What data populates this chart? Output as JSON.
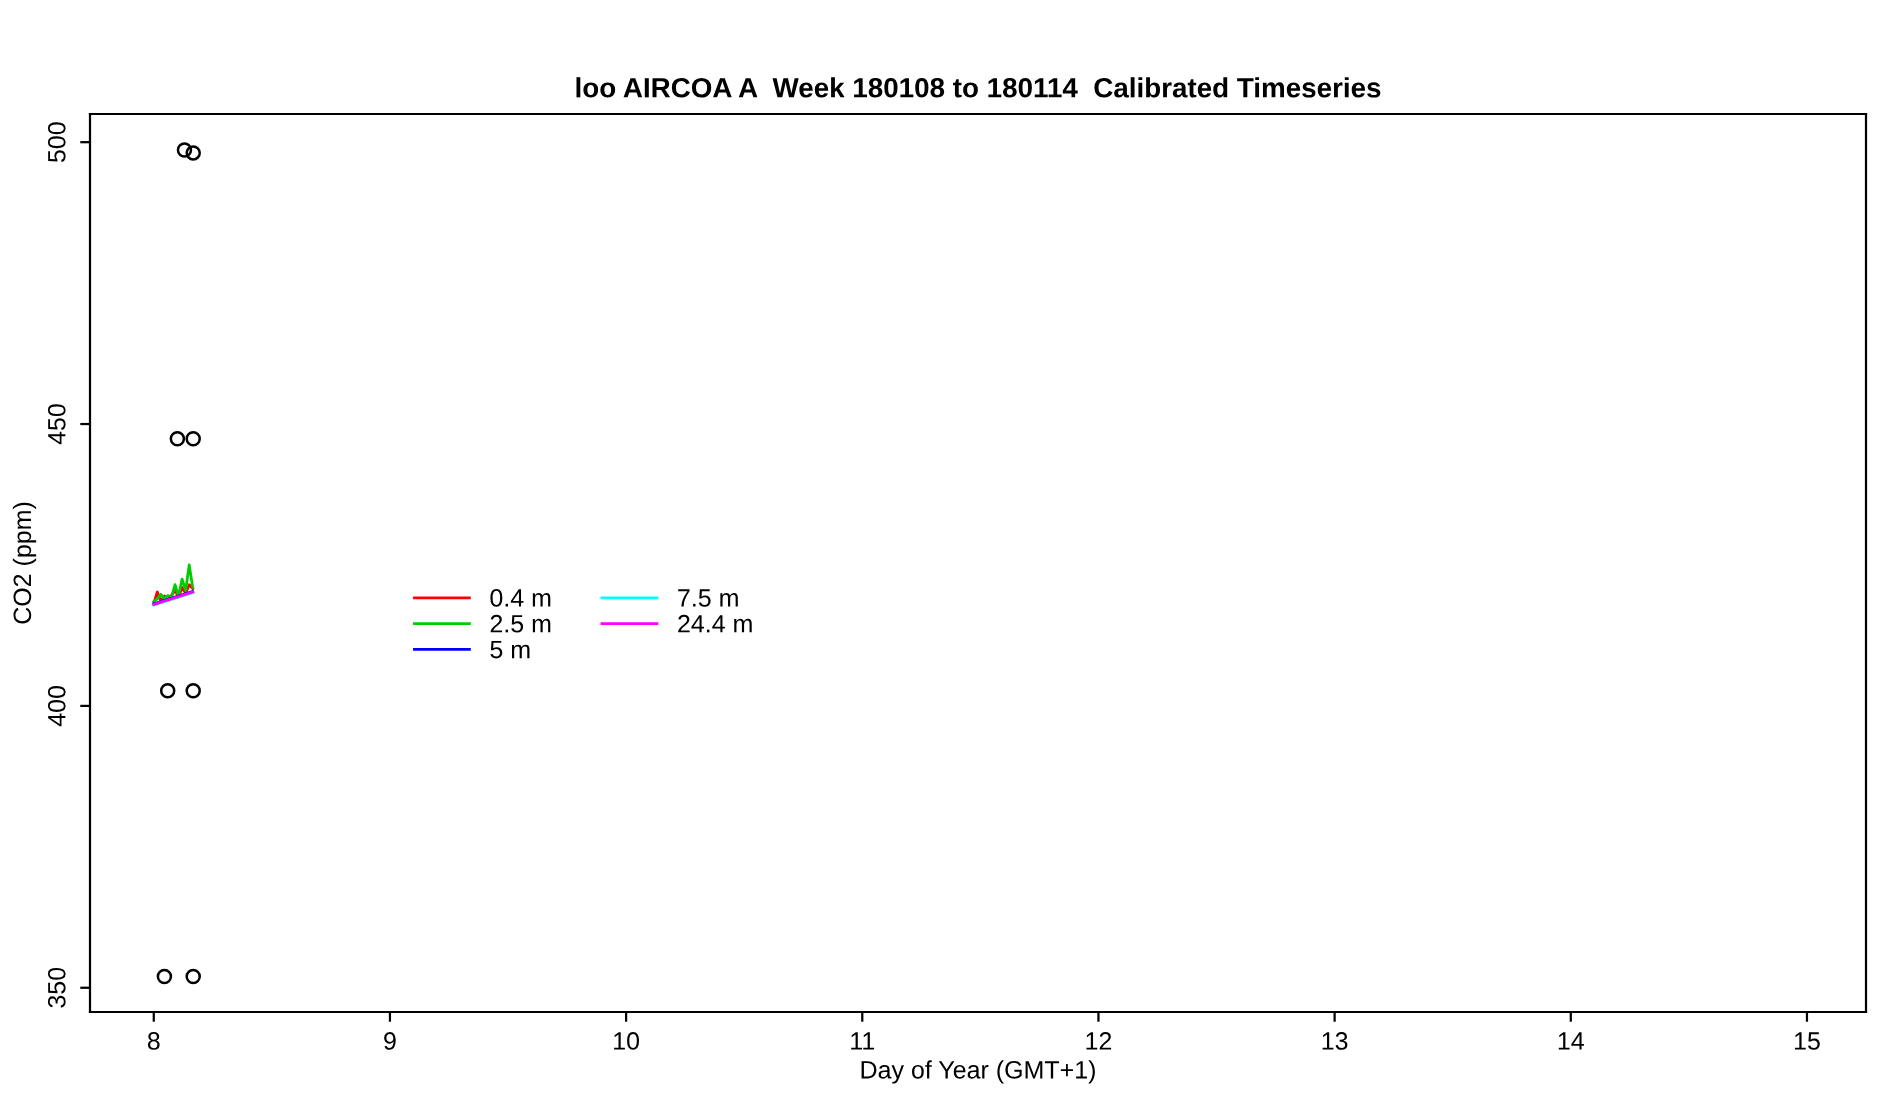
{
  "chart_data": {
    "type": "line",
    "title": "loo AIRCOA A  Week 180108 to 180114  Calibrated Timeseries",
    "xlabel": "Day of Year (GMT+1)",
    "ylabel": "CO2 (ppm)",
    "xlim": [
      7.73,
      15.25
    ],
    "ylim": [
      345.7,
      505
    ],
    "xticks": [
      8,
      9,
      10,
      11,
      12,
      13,
      14,
      15
    ],
    "yticks": [
      350,
      400,
      450,
      500
    ],
    "grid": false,
    "legend": "left",
    "marker": "none",
    "line_style": "solid",
    "series": [
      {
        "name": "0.4 m",
        "color": "#ff0000",
        "x": [
          8.0,
          8.015,
          8.03,
          8.045,
          8.06,
          8.075,
          8.09,
          8.105,
          8.12,
          8.135,
          8.15,
          8.165
        ],
        "values": [
          418.2,
          420.2,
          418.6,
          419.5,
          418.8,
          419.6,
          420.5,
          419.3,
          421.0,
          420.0,
          421.5,
          420.8
        ]
      },
      {
        "name": "2.5 m",
        "color": "#00cd00",
        "x": [
          8.0,
          8.015,
          8.03,
          8.045,
          8.06,
          8.075,
          8.09,
          8.105,
          8.12,
          8.135,
          8.15,
          8.165
        ],
        "values": [
          418.5,
          419.0,
          419.8,
          419.0,
          419.6,
          419.2,
          421.5,
          419.5,
          422.5,
          420.5,
          425.0,
          421.0
        ]
      },
      {
        "name": "5 m",
        "color": "#0000ff",
        "x": [
          8.0,
          8.015,
          8.03,
          8.045,
          8.06,
          8.075,
          8.09,
          8.105,
          8.12,
          8.135,
          8.15,
          8.165
        ],
        "values": [
          418.1,
          418.3,
          418.5,
          418.7,
          418.9,
          419.1,
          419.3,
          419.5,
          419.7,
          419.9,
          420.1,
          420.3
        ]
      },
      {
        "name": "7.5 m",
        "color": "#00ffff",
        "x": [
          8.0,
          8.015,
          8.03,
          8.045,
          8.06,
          8.075,
          8.09,
          8.105,
          8.12,
          8.135,
          8.15,
          8.165
        ],
        "values": [
          417.9,
          418.1,
          418.3,
          418.5,
          418.7,
          418.9,
          419.1,
          419.3,
          419.5,
          419.7,
          419.9,
          420.1
        ]
      },
      {
        "name": "24.4 m",
        "color": "#ff00ff",
        "x": [
          8.0,
          8.015,
          8.03,
          8.045,
          8.06,
          8.075,
          8.09,
          8.105,
          8.12,
          8.135,
          8.15,
          8.165
        ],
        "values": [
          418.0,
          418.2,
          418.4,
          418.6,
          418.8,
          419.0,
          419.2,
          419.4,
          419.6,
          419.8,
          420.0,
          420.2
        ]
      },
      {
        "type": "scatter",
        "color": "#000000",
        "marker": "circle",
        "x": [
          8.045,
          8.167,
          8.059,
          8.167,
          8.1,
          8.167,
          8.13,
          8.167
        ],
        "values": [
          352.0,
          352.0,
          402.7,
          402.7,
          447.4,
          447.4,
          498.6,
          498.1
        ]
      }
    ]
  }
}
